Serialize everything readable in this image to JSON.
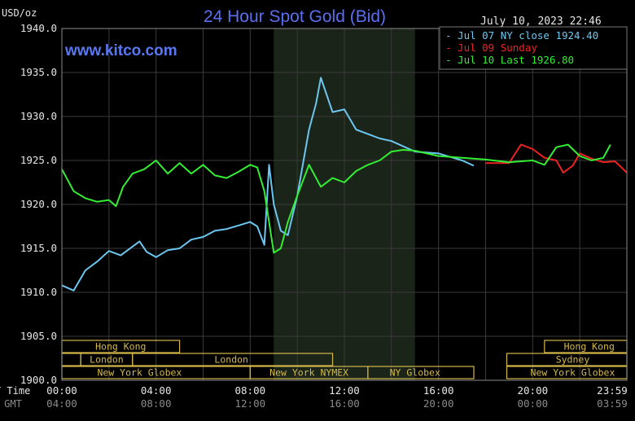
{
  "header": {
    "title": "24 Hour Spot Gold (Bid)",
    "unit": "USD/oz",
    "date": "July 10, 2023 22:46",
    "site": "www.kitco.com"
  },
  "colors": {
    "jul07": "#6cc7f0",
    "jul09": "#ee2222",
    "jul10": "#33ee33",
    "title": "#5a6ff2",
    "site": "#5a78f2",
    "session_box": "#d4b84a",
    "grid": "#3a3a3a",
    "shade": "#1b2419"
  },
  "chart_data": {
    "type": "line",
    "title": "24 Hour Spot Gold (Bid)",
    "ylabel": "USD/oz",
    "ylim": [
      1900.0,
      1940.0
    ],
    "yticks": [
      "1900.0",
      "1905.0",
      "1910.0",
      "1915.0",
      "1920.0",
      "1925.0",
      "1930.0",
      "1935.0",
      "1940.0"
    ],
    "xlim": [
      0,
      24
    ],
    "shade_range": [
      9,
      15
    ],
    "x_axis_labels": {
      "ny_label": "NY Time",
      "gmt_label": "GMT",
      "ny_ticks": [
        "00:00",
        "04:00",
        "08:00",
        "12:00",
        "16:00",
        "20:00",
        "23:59"
      ],
      "gmt_ticks": [
        "04:00",
        "08:00",
        "12:00",
        "16:00",
        "20:00",
        "00:00",
        "03:59"
      ]
    },
    "legend": {
      "placement": "top-right",
      "entries": [
        "- Jul 07 NY close 1924.40",
        "- Jul 09 Sunday",
        "- Jul 10 Last 1926.80"
      ]
    },
    "series": [
      {
        "name": "Jul 07 NY close 1924.40",
        "x": [
          0,
          0.5,
          1,
          1.5,
          2,
          2.5,
          3,
          3.3,
          3.6,
          4,
          4.5,
          5,
          5.5,
          6,
          6.5,
          7,
          7.5,
          8,
          8.3,
          8.6,
          8.8,
          9.0,
          9.3,
          9.6,
          10.0,
          10.5,
          10.8,
          11.0,
          11.5,
          12.0,
          12.5,
          13.0,
          13.5,
          14.0,
          15.0,
          16.0,
          17.0,
          17.5
        ],
        "values": [
          1910.8,
          1910.2,
          1912.5,
          1913.5,
          1914.7,
          1914.2,
          1915.2,
          1915.8,
          1914.6,
          1914.0,
          1914.8,
          1915.0,
          1916.0,
          1916.3,
          1917.0,
          1917.2,
          1917.6,
          1918.0,
          1917.5,
          1915.4,
          1924.5,
          1920.0,
          1917.0,
          1916.5,
          1921.0,
          1928.5,
          1931.5,
          1934.4,
          1930.5,
          1930.8,
          1928.5,
          1928.0,
          1927.5,
          1927.2,
          1926.0,
          1925.8,
          1925.0,
          1924.4
        ]
      },
      {
        "name": "Jul 09 Sunday",
        "x": [
          18.0,
          19.0,
          19.5,
          20.0,
          20.5,
          21.0,
          21.3,
          21.7,
          22.0,
          22.5,
          23.0,
          23.5,
          24.0
        ],
        "values": [
          1924.7,
          1924.7,
          1926.8,
          1926.3,
          1925.3,
          1925.0,
          1923.6,
          1924.4,
          1925.8,
          1925.2,
          1924.8,
          1924.9,
          1923.6
        ]
      },
      {
        "name": "Jul 10 Last 1926.80",
        "x": [
          0,
          0.5,
          1,
          1.5,
          2,
          2.3,
          2.6,
          3,
          3.5,
          4,
          4.5,
          5,
          5.5,
          6,
          6.5,
          7,
          7.5,
          8,
          8.3,
          8.6,
          9.0,
          9.3,
          9.6,
          10.0,
          10.5,
          11.0,
          11.5,
          12.0,
          12.5,
          13.0,
          13.5,
          14.0,
          14.5,
          15.0,
          16.0,
          17.0,
          18.0,
          19.0,
          20.0,
          20.5,
          21.0,
          21.5,
          22.0,
          22.5,
          23.0,
          23.3
        ],
        "values": [
          1924.0,
          1921.5,
          1920.7,
          1920.3,
          1920.5,
          1919.8,
          1922.0,
          1923.5,
          1924.0,
          1925.0,
          1923.5,
          1924.7,
          1923.5,
          1924.5,
          1923.3,
          1923.0,
          1923.7,
          1924.5,
          1924.2,
          1921.5,
          1914.5,
          1915.0,
          1918.0,
          1921.0,
          1924.5,
          1922.0,
          1923.0,
          1922.5,
          1923.8,
          1924.5,
          1925.0,
          1926.0,
          1926.2,
          1926.1,
          1925.5,
          1925.3,
          1925.1,
          1924.8,
          1925.0,
          1924.5,
          1926.5,
          1926.8,
          1925.5,
          1925.0,
          1925.3,
          1926.8
        ]
      }
    ],
    "sessions": [
      {
        "label": "Hong Kong",
        "start": 0,
        "end": 5.0,
        "row": 0,
        "text_at": 2.5
      },
      {
        "label": "Hong Kong",
        "start": 20.5,
        "end": 24,
        "row": 0,
        "text_at": 22.4
      },
      {
        "label": "",
        "start": 0,
        "end": 0.8,
        "row": 1,
        "text_at": 0.4
      },
      {
        "label": "London",
        "start": 0.8,
        "end": 3.0,
        "row": 1,
        "text_at": 1.9
      },
      {
        "label": "London",
        "start": 3.0,
        "end": 11.5,
        "row": 1,
        "text_at": 7.2
      },
      {
        "label": "Sydney",
        "start": 18.9,
        "end": 24,
        "row": 1,
        "text_at": 21.7
      },
      {
        "label": "New York Globex",
        "start": 0,
        "end": 8.0,
        "row": 2,
        "text_at": 3.3
      },
      {
        "label": "New York NYMEX",
        "start": 8.0,
        "end": 13.0,
        "row": 2,
        "text_at": 10.5
      },
      {
        "label": "NY Globex",
        "start": 13.0,
        "end": 17.5,
        "row": 2,
        "text_at": 15.0
      },
      {
        "label": "New York Globex",
        "start": 18.9,
        "end": 24,
        "row": 2,
        "text_at": 21.7
      }
    ]
  }
}
